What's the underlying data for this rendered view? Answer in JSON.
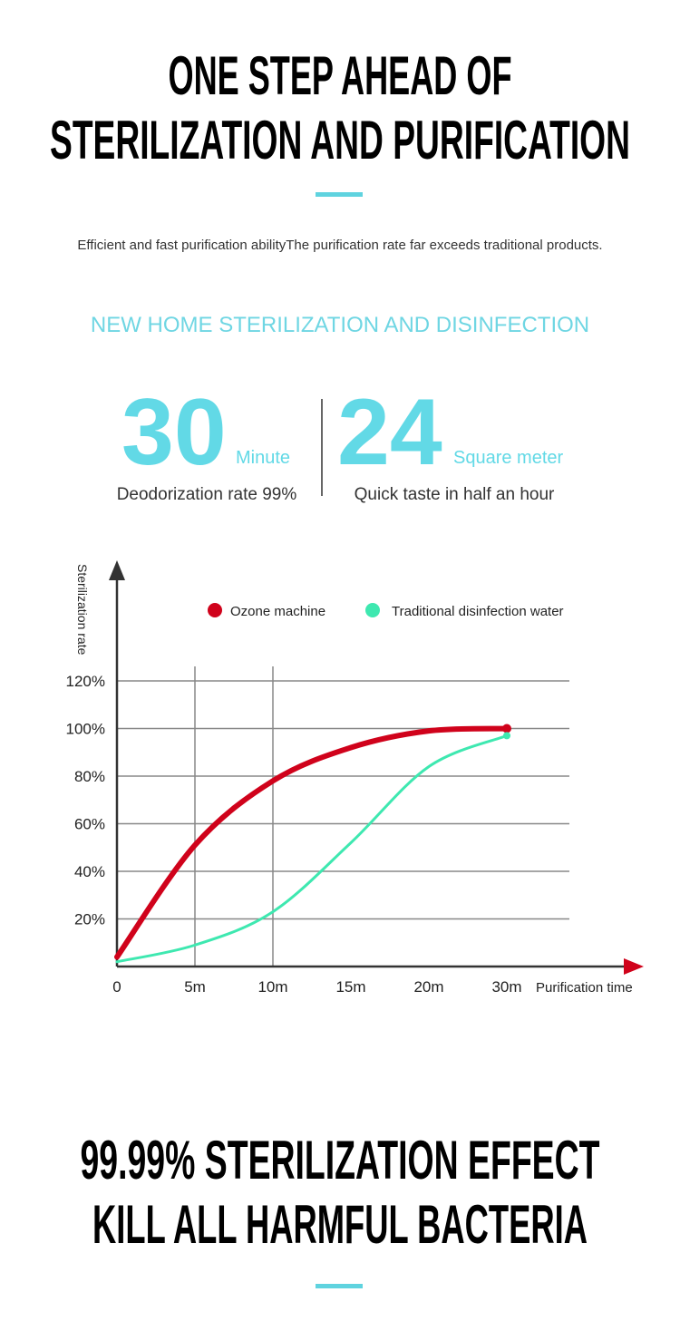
{
  "header": {
    "title_lines": [
      "ONE STEP AHEAD OF",
      "STERILIZATION AND PURIFICATION"
    ],
    "subtitle": "Efficient and fast purification abilityThe purification rate far exceeds traditional products."
  },
  "section_heading": "NEW HOME STERILIZATION AND DISINFECTION",
  "stats": [
    {
      "number": "30",
      "unit": "Minute",
      "caption": "Deodorization rate 99%"
    },
    {
      "number": "24",
      "unit": "Square meter",
      "caption": "Quick taste in half an hour"
    }
  ],
  "chart_data": {
    "type": "line",
    "y_label": "Sterilization rate",
    "x_label": "Purification time",
    "categories": [
      "0",
      "5m",
      "10m",
      "15m",
      "20m",
      "30m"
    ],
    "series": [
      {
        "name": "Ozone machine",
        "color": "#d0021b",
        "values": [
          4,
          51,
          78,
          92,
          99,
          100
        ]
      },
      {
        "name": "Traditional disinfection water",
        "color": "#3ee8b0",
        "values": [
          2,
          9,
          23,
          52,
          84,
          97
        ]
      }
    ],
    "ylim": [
      0,
      120
    ],
    "yticks": [
      {
        "value": 20,
        "label": "20%"
      },
      {
        "value": 40,
        "label": "40%"
      },
      {
        "value": 60,
        "label": "60%"
      },
      {
        "value": 80,
        "label": "80%"
      },
      {
        "value": 100,
        "label": "100%"
      },
      {
        "value": 120,
        "label": "120%"
      }
    ],
    "grid": true
  },
  "footer": {
    "title_lines": [
      "99.99% STERILIZATION EFFECT",
      "KILL ALL HARMFUL BACTERIA"
    ]
  }
}
